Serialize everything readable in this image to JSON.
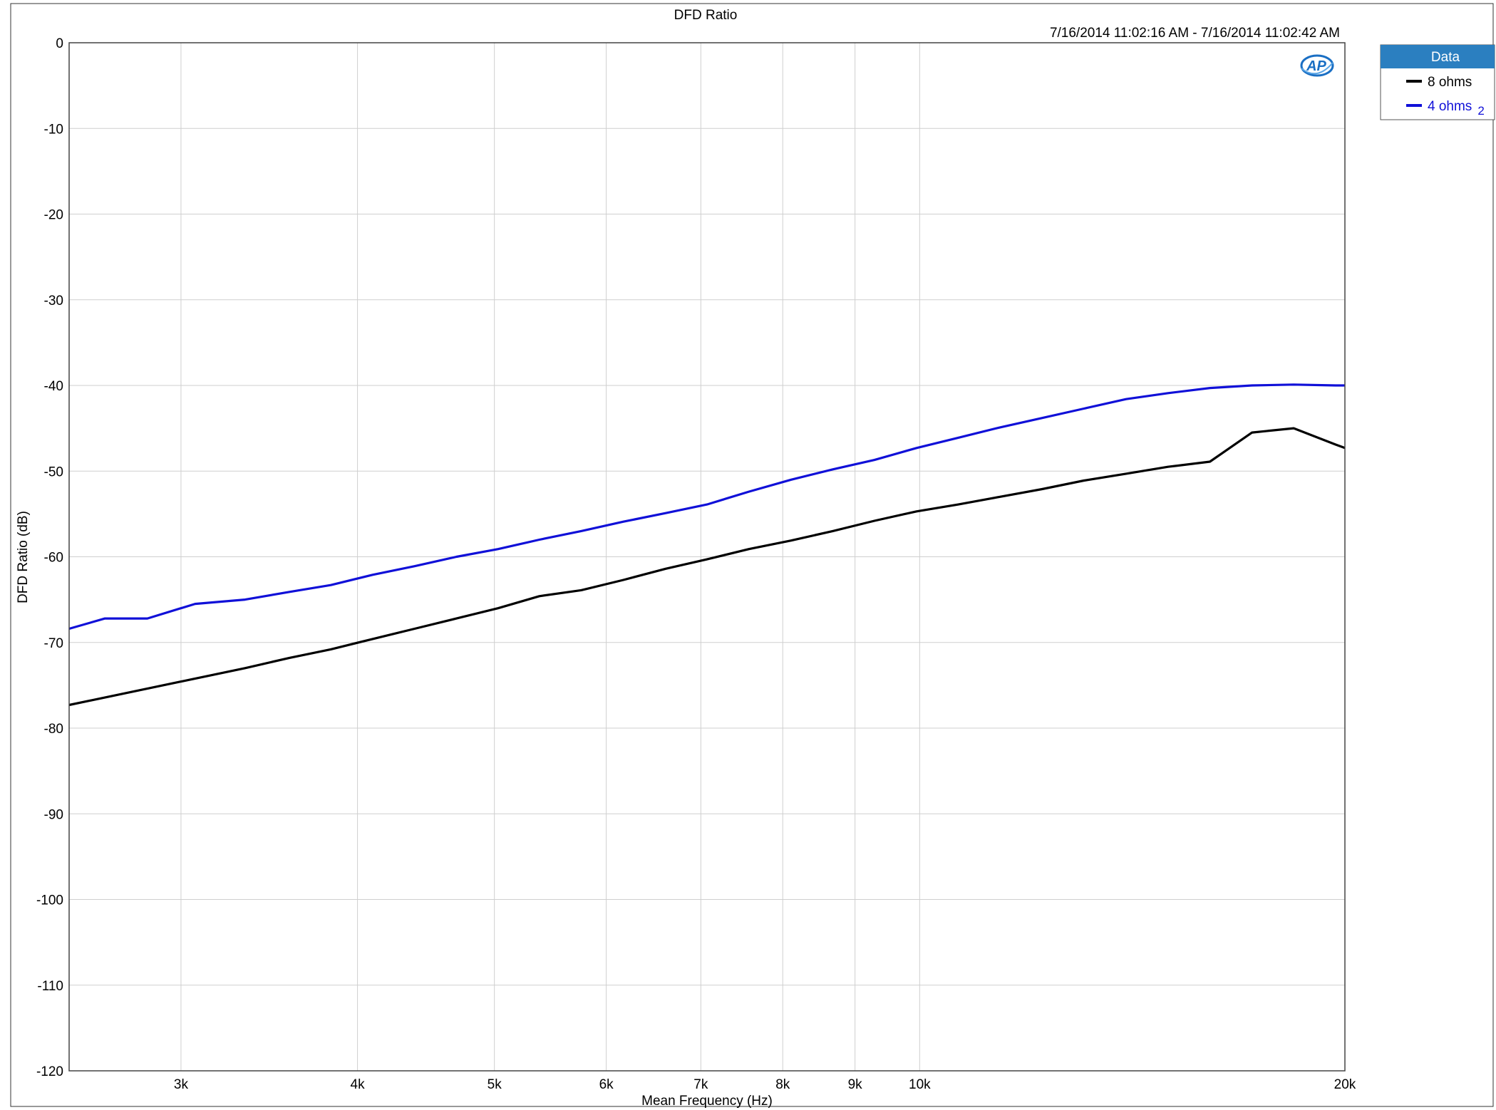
{
  "chart_data": {
    "type": "line",
    "title": "DFD Ratio",
    "subtitle": "7/16/2014 11:02:16 AM - 7/16/2014 11:02:42 AM",
    "xlabel": "Mean Frequency (Hz)",
    "ylabel": "DFD Ratio (dB)",
    "x_scale": "log",
    "xlim": [
      2500,
      20000
    ],
    "ylim": [
      -120,
      0
    ],
    "x_ticks": [
      {
        "value": 3000,
        "label": "3k"
      },
      {
        "value": 4000,
        "label": "4k"
      },
      {
        "value": 5000,
        "label": "5k"
      },
      {
        "value": 6000,
        "label": "6k"
      },
      {
        "value": 7000,
        "label": "7k"
      },
      {
        "value": 8000,
        "label": "8k"
      },
      {
        "value": 9000,
        "label": "9k"
      },
      {
        "value": 10000,
        "label": "10k"
      },
      {
        "value": 20000,
        "label": "20k"
      }
    ],
    "y_ticks": [
      0,
      -10,
      -20,
      -30,
      -40,
      -50,
      -60,
      -70,
      -80,
      -90,
      -100,
      -110,
      -120
    ],
    "grid": true,
    "legend_position": "top-right",
    "legend_title": "Data",
    "series": [
      {
        "name": "8 ohms",
        "color": "#000000",
        "x": [
          2500,
          3330,
          3580,
          3830,
          4100,
          4390,
          4700,
          5030,
          5380,
          5760,
          6170,
          6610,
          7070,
          7570,
          8110,
          8680,
          9290,
          9950,
          10650,
          11400,
          12210,
          13070,
          14000,
          14990,
          16050,
          17190,
          18400,
          19700,
          20000
        ],
        "y": [
          -77.3,
          -73.0,
          -71.8,
          -70.8,
          -69.6,
          -68.4,
          -67.2,
          -66.0,
          -64.6,
          -63.9,
          -62.7,
          -61.4,
          -60.3,
          -59.1,
          -58.1,
          -57.0,
          -55.8,
          -54.7,
          -53.9,
          -53.0,
          -52.1,
          -51.1,
          -50.3,
          -49.5,
          -48.9,
          -45.5,
          -45.0,
          -46.9,
          -47.3
        ]
      },
      {
        "name": "4 ohms",
        "name_subscript": "2",
        "color": "#1010d8",
        "x": [
          2500,
          2650,
          2840,
          3070,
          3330,
          3580,
          3830,
          4100,
          4390,
          4700,
          5030,
          5380,
          5760,
          6170,
          6610,
          7070,
          7570,
          8110,
          8680,
          9290,
          9950,
          10650,
          11400,
          12210,
          13070,
          14000,
          14990,
          16050,
          17190,
          18400,
          19700,
          20000
        ],
        "y": [
          -68.4,
          -67.2,
          -67.2,
          -65.5,
          -65.0,
          -64.1,
          -63.3,
          -62.1,
          -61.1,
          -60.0,
          -59.1,
          -58.0,
          -57.0,
          -55.9,
          -54.9,
          -53.9,
          -52.4,
          -51.0,
          -49.8,
          -48.7,
          -47.3,
          -46.1,
          -44.9,
          -43.8,
          -42.7,
          -41.6,
          -40.9,
          -40.3,
          -40.0,
          -39.9,
          -40.0,
          -40.0
        ]
      }
    ]
  }
}
